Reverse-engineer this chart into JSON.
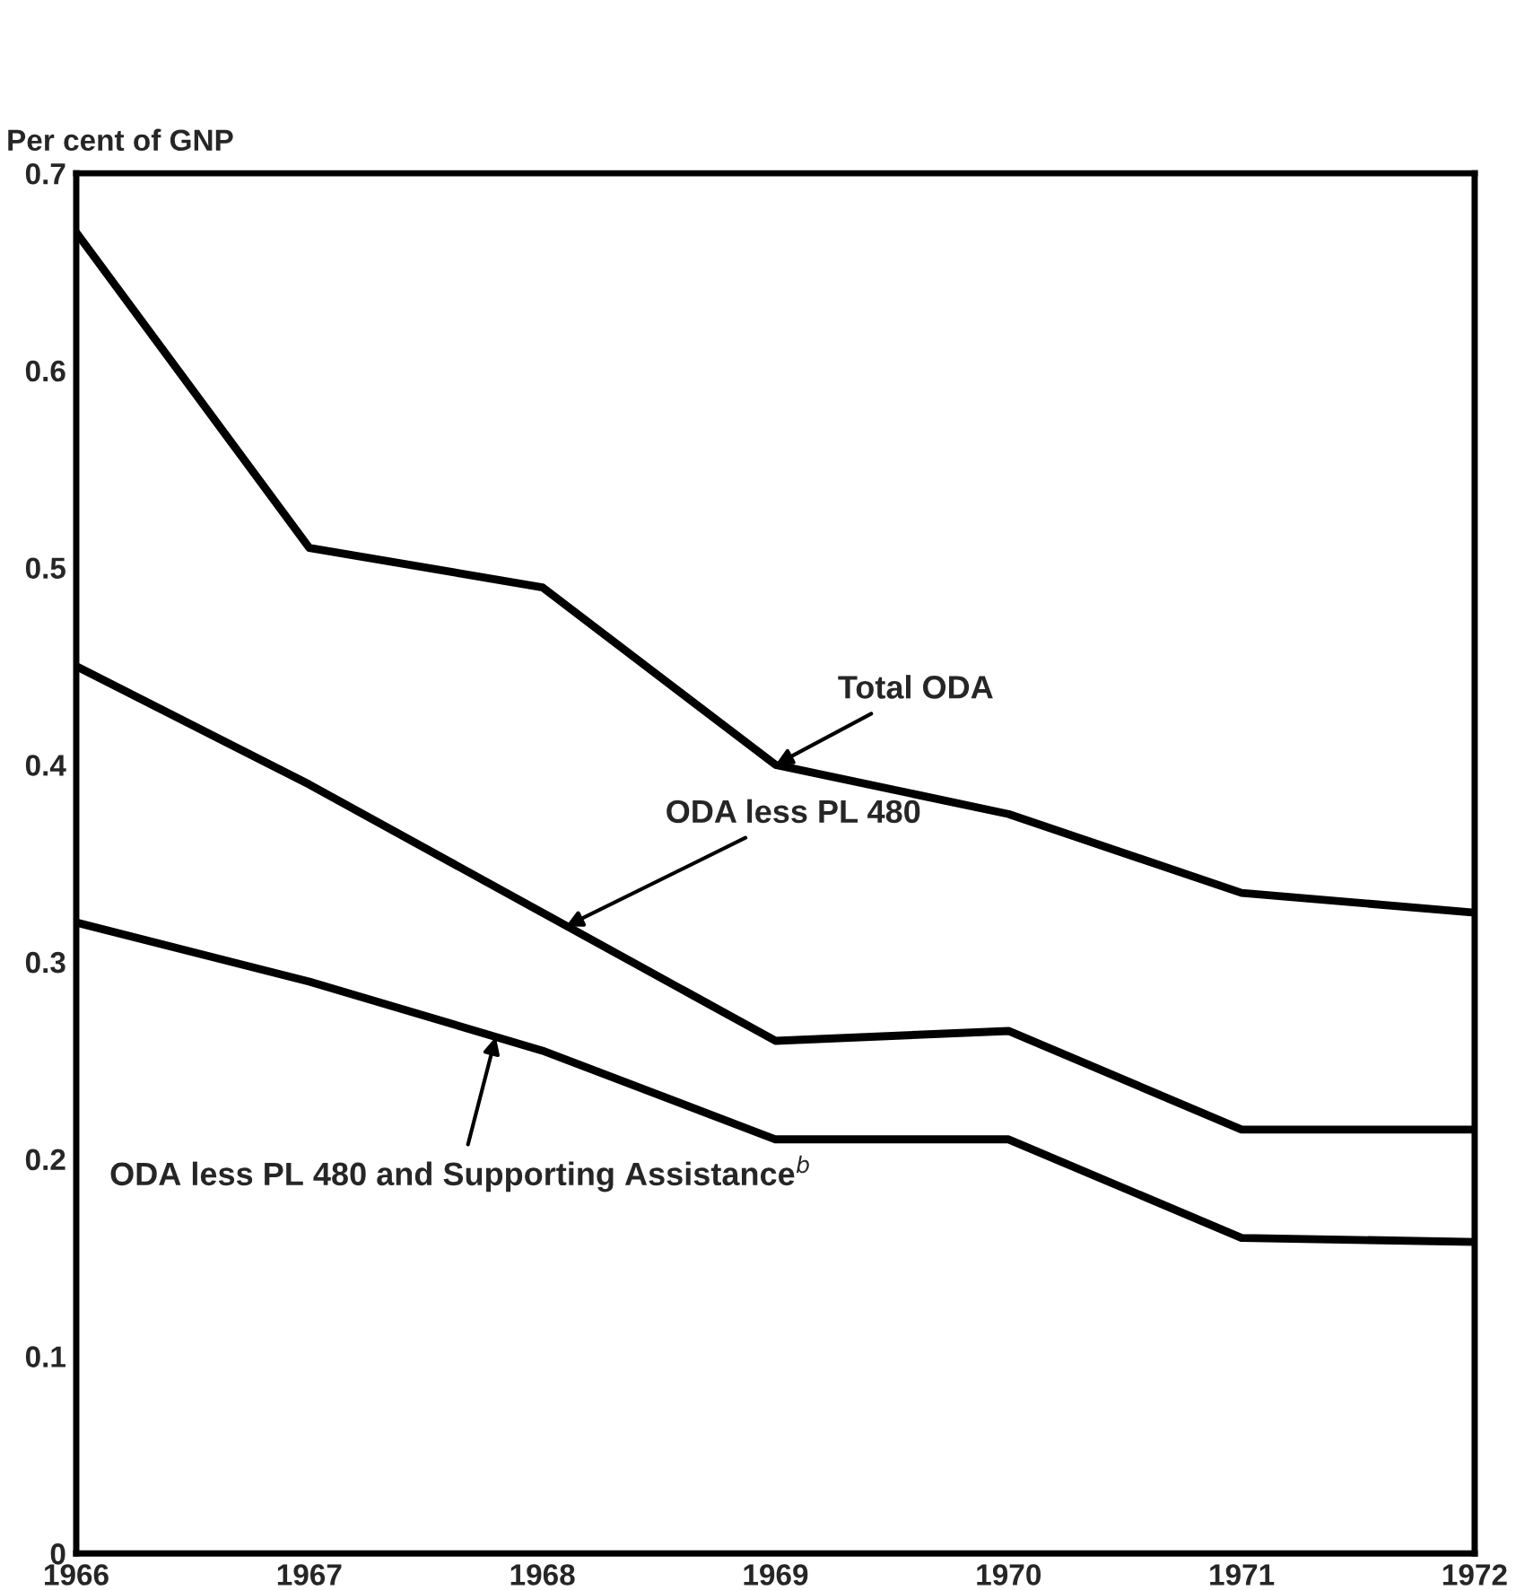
{
  "chart_data": {
    "type": "line",
    "ylabel": "Per cent of GNP",
    "x": [
      1966,
      1967,
      1968,
      1969,
      1970,
      1971,
      1972
    ],
    "series": [
      {
        "color": "#000000",
        "values": [
          0.67,
          0.51,
          0.49,
          0.4,
          0.375,
          0.335,
          0.325
        ]
      },
      {
        "color": "#000000",
        "values": [
          0.45,
          0.39,
          0.325,
          0.26,
          0.265,
          0.215,
          0.215
        ]
      },
      {
        "color": "#000000",
        "values": [
          0.32,
          0.29,
          0.255,
          0.21,
          0.21,
          0.16,
          0.158
        ]
      }
    ],
    "xlim": [
      1966,
      1972
    ],
    "xticks": [
      1966,
      1967,
      1968,
      1969,
      1970,
      1971,
      1972
    ],
    "ylim": [
      0,
      0.7
    ],
    "yticks": [
      0,
      0.1,
      0.2,
      0.3,
      0.4,
      0.5,
      0.6,
      0.7
    ],
    "annotations": [
      {
        "text": "Total ODA",
        "x": 1969,
        "y": 0.4
      },
      {
        "text": "ODA less PL 480",
        "x": 1968.1,
        "y": 0.318
      },
      {
        "text": "ODA less PL 480 and Supporting Assistance$^{b}$",
        "x": 1967.8,
        "y": 0.262
      }
    ],
    "grid": false,
    "legend": false,
    "marker": "none",
    "line_style": "solid"
  }
}
